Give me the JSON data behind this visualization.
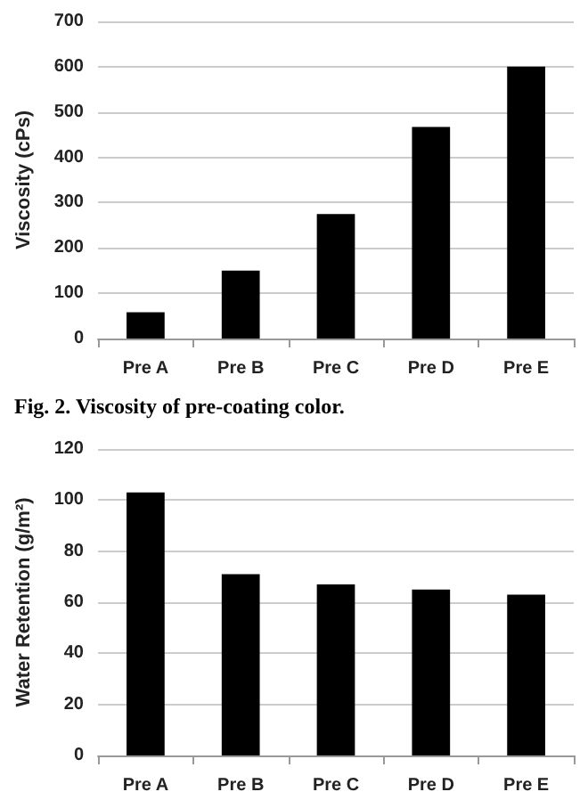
{
  "chart_data": [
    {
      "type": "bar",
      "categories": [
        "Pre A",
        "Pre B",
        "Pre C",
        "Pre D",
        "Pre E"
      ],
      "values": [
        58,
        150,
        275,
        467,
        600
      ],
      "color": "#000000",
      "ylabel": "Viscosity (cPs)",
      "ylim": [
        0,
        700
      ],
      "yticks": [
        0,
        100,
        200,
        300,
        400,
        500,
        600,
        700
      ],
      "grid": "y",
      "annotations": [
        "Fig. 2. Viscosity of pre-coating color."
      ]
    },
    {
      "type": "bar",
      "categories": [
        "Pre A",
        "Pre B",
        "Pre C",
        "Pre D",
        "Pre E"
      ],
      "values": [
        103,
        71,
        67,
        65,
        63
      ],
      "color": "#000000",
      "ylabel": "Water Retention (g/m²)",
      "ylim": [
        0,
        120
      ],
      "yticks": [
        0,
        20,
        40,
        60,
        80,
        100,
        120
      ],
      "grid": "y"
    }
  ]
}
